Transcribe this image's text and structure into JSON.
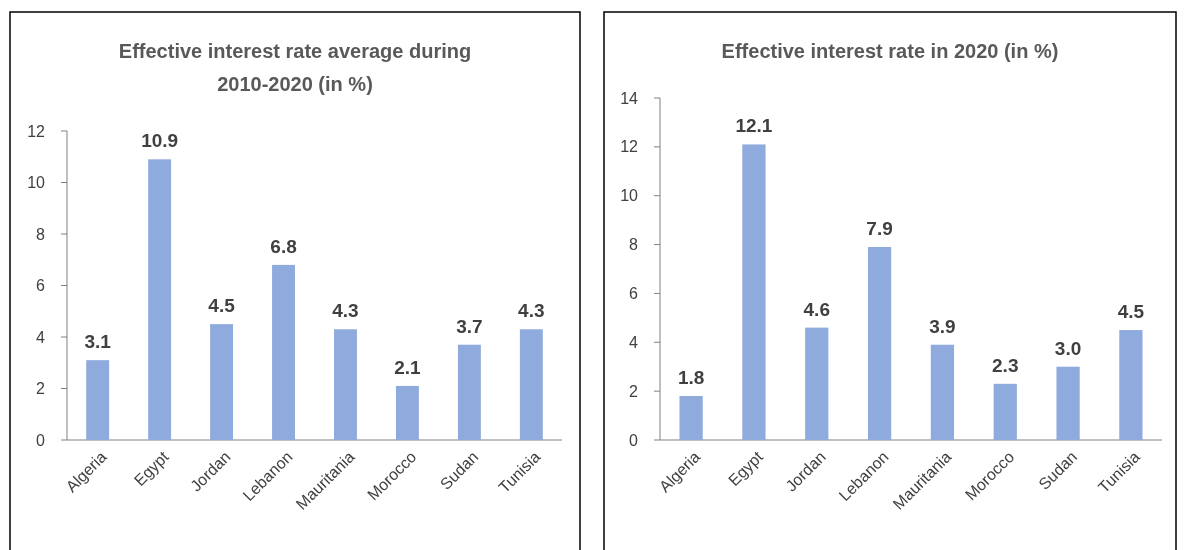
{
  "chart_data": [
    {
      "type": "bar",
      "title": "Effective interest rate average during 2010-2020 (in %)",
      "categories": [
        "Algeria",
        "Egypt",
        "Jordan",
        "Lebanon",
        "Mauritania",
        "Morocco",
        "Sudan",
        "Tunisia"
      ],
      "values": [
        3.1,
        10.9,
        4.5,
        6.8,
        4.3,
        2.1,
        3.7,
        4.3
      ],
      "value_labels": [
        "3.1",
        "10.9",
        "4.5",
        "6.8",
        "4.3",
        "2.1",
        "3.7",
        "4.3"
      ],
      "color": "#8faadc",
      "ylim": [
        0,
        12
      ],
      "yticks": [
        0,
        2,
        4,
        6,
        8,
        10,
        12
      ]
    },
    {
      "type": "bar",
      "title": "Effective interest rate in 2020 (in %)",
      "categories": [
        "Algeria",
        "Egypt",
        "Jordan",
        "Lebanon",
        "Mauritania",
        "Morocco",
        "Sudan",
        "Tunisia"
      ],
      "values": [
        1.8,
        12.1,
        4.6,
        7.9,
        3.9,
        2.3,
        3.0,
        4.5
      ],
      "value_labels": [
        "1.8",
        "12.1",
        "4.6",
        "7.9",
        "3.9",
        "2.3",
        "3.0",
        "4.5"
      ],
      "color": "#8faadc",
      "ylim": [
        0,
        14
      ],
      "yticks": [
        0,
        2,
        4,
        6,
        8,
        10,
        12,
        14
      ]
    }
  ]
}
